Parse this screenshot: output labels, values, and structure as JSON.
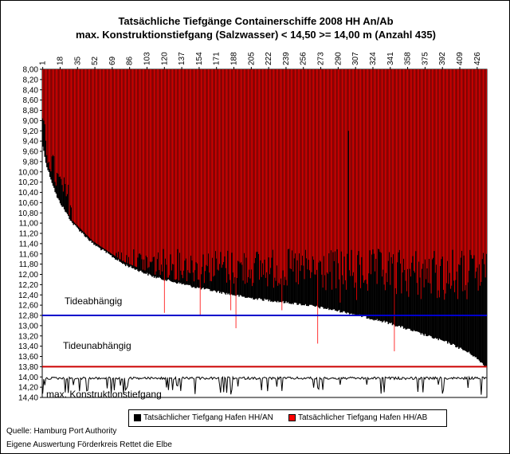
{
  "chart_data": {
    "type": "bar",
    "title": "Tatsächliche Tiefgänge Containerschiffe 2008 HH An/Ab",
    "subtitle": "max. Konstruktionstiefgang (Salzwasser)  < 14,50 >= 14,00 m (Anzahl 435)",
    "x_range": [
      1,
      435
    ],
    "x_ticks": [
      "1",
      "18",
      "35",
      "52",
      "69",
      "86",
      "103",
      "120",
      "137",
      "154",
      "171",
      "188",
      "205",
      "222",
      "239",
      "256",
      "273",
      "290",
      "307",
      "324",
      "341",
      "358",
      "375",
      "392",
      "409",
      "426"
    ],
    "y_axis": {
      "reversed": true,
      "ylim": [
        8.0,
        14.4
      ],
      "step": 0.2
    },
    "y_ticks": [
      "8,00",
      "8,20",
      "8,40",
      "8,60",
      "8,80",
      "9,00",
      "9,20",
      "9,40",
      "9,60",
      "9,80",
      "10,00",
      "10,20",
      "10,40",
      "10,60",
      "10,80",
      "11,00",
      "11,20",
      "11,40",
      "11,60",
      "11,80",
      "12,00",
      "12,20",
      "12,40",
      "12,60",
      "12,80",
      "13,00",
      "13,20",
      "13,40",
      "13,60",
      "13,80",
      "14,00",
      "14,20",
      "14,40"
    ],
    "series": [
      {
        "name": "Tatsächlicher Tiefgang Hafen HH/AN",
        "color": "#000000",
        "sorted": true,
        "anchor_points": [
          [
            1,
            9.5
          ],
          [
            5,
            9.9
          ],
          [
            15,
            10.5
          ],
          [
            30,
            11.0
          ],
          [
            50,
            11.4
          ],
          [
            80,
            11.8
          ],
          [
            110,
            12.05
          ],
          [
            150,
            12.25
          ],
          [
            200,
            12.45
          ],
          [
            260,
            12.6
          ],
          [
            300,
            12.75
          ],
          [
            340,
            12.95
          ],
          [
            370,
            13.15
          ],
          [
            400,
            13.35
          ],
          [
            420,
            13.55
          ],
          [
            435,
            13.8
          ]
        ]
      },
      {
        "name": "Tatsächlicher Tiefgang Hafen HH/AB",
        "color": "#FF0000",
        "sorted": false,
        "typical_range": [
          11.5,
          12.6
        ],
        "notable_values": [
          [
            120,
            12.75
          ],
          [
            155,
            12.8
          ],
          [
            185,
            12.7
          ],
          [
            190,
            13.05
          ],
          [
            235,
            12.7
          ],
          [
            270,
            13.35
          ],
          [
            292,
            12.55
          ],
          [
            308,
            12.5
          ],
          [
            345,
            13.5
          ],
          [
            300,
            9.2
          ],
          [
            435,
            11.6
          ]
        ]
      },
      {
        "name": "max. Konstruktionstiefgang",
        "color": "#000000",
        "range": [
          14.0,
          14.5
        ]
      }
    ],
    "reference_lines": [
      {
        "label": "Tideabhängig",
        "y": 12.8,
        "color": "#0000CC"
      },
      {
        "label": "Tideunabhängig",
        "y": 13.8,
        "color": "#CC0000"
      }
    ],
    "annotations": [
      "Tideabhängig",
      "Tideunabhängig",
      "max. Konstruktionstiefgang"
    ],
    "legend": {
      "placement": "bottom"
    }
  },
  "source_lines": [
    "Quelle: Hamburg Port Authority",
    "Eigene Auswertung Förderkreis Rettet die Elbe"
  ]
}
